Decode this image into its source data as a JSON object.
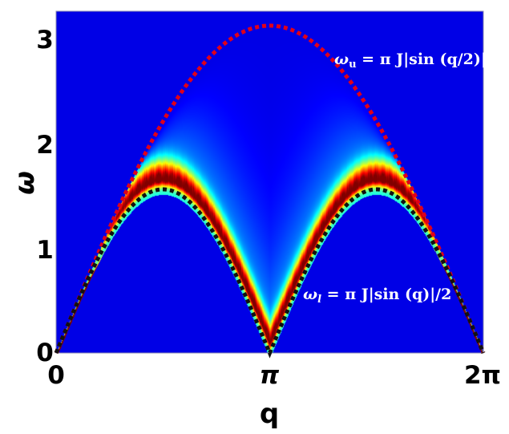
{
  "chart_data": {
    "type": "heatmap",
    "xlabel": "q",
    "ylabel": "ω",
    "xlim": [
      0,
      6.2832
    ],
    "ylim": [
      0,
      3.28
    ],
    "x_ticks": [
      {
        "value": 0,
        "label": "0"
      },
      {
        "value": 3.1416,
        "label": "π"
      },
      {
        "value": 6.2832,
        "label": "2π"
      }
    ],
    "y_ticks": [
      {
        "value": 0,
        "label": "0"
      },
      {
        "value": 1,
        "label": "1"
      },
      {
        "value": 2,
        "label": "2"
      },
      {
        "value": 3,
        "label": "3"
      }
    ],
    "colormap": "jet",
    "background_color": "#0000b4",
    "series": [
      {
        "annotation": "ω_u = π J|sin (q/2)|",
        "label_main": "ω",
        "label_sub": "u",
        "label_rest": " = π J|sin (q/2)|",
        "style": "dotted",
        "color": "#e0001a",
        "peak": 3.1416
      },
      {
        "annotation": "ω_l = π J|sin (q)|/2",
        "label_main": "ω",
        "label_sub": "l",
        "label_rest": " = π J|sin (q)|/2",
        "style": "dotted",
        "color": "#111111",
        "peak": 1.5708
      }
    ]
  }
}
